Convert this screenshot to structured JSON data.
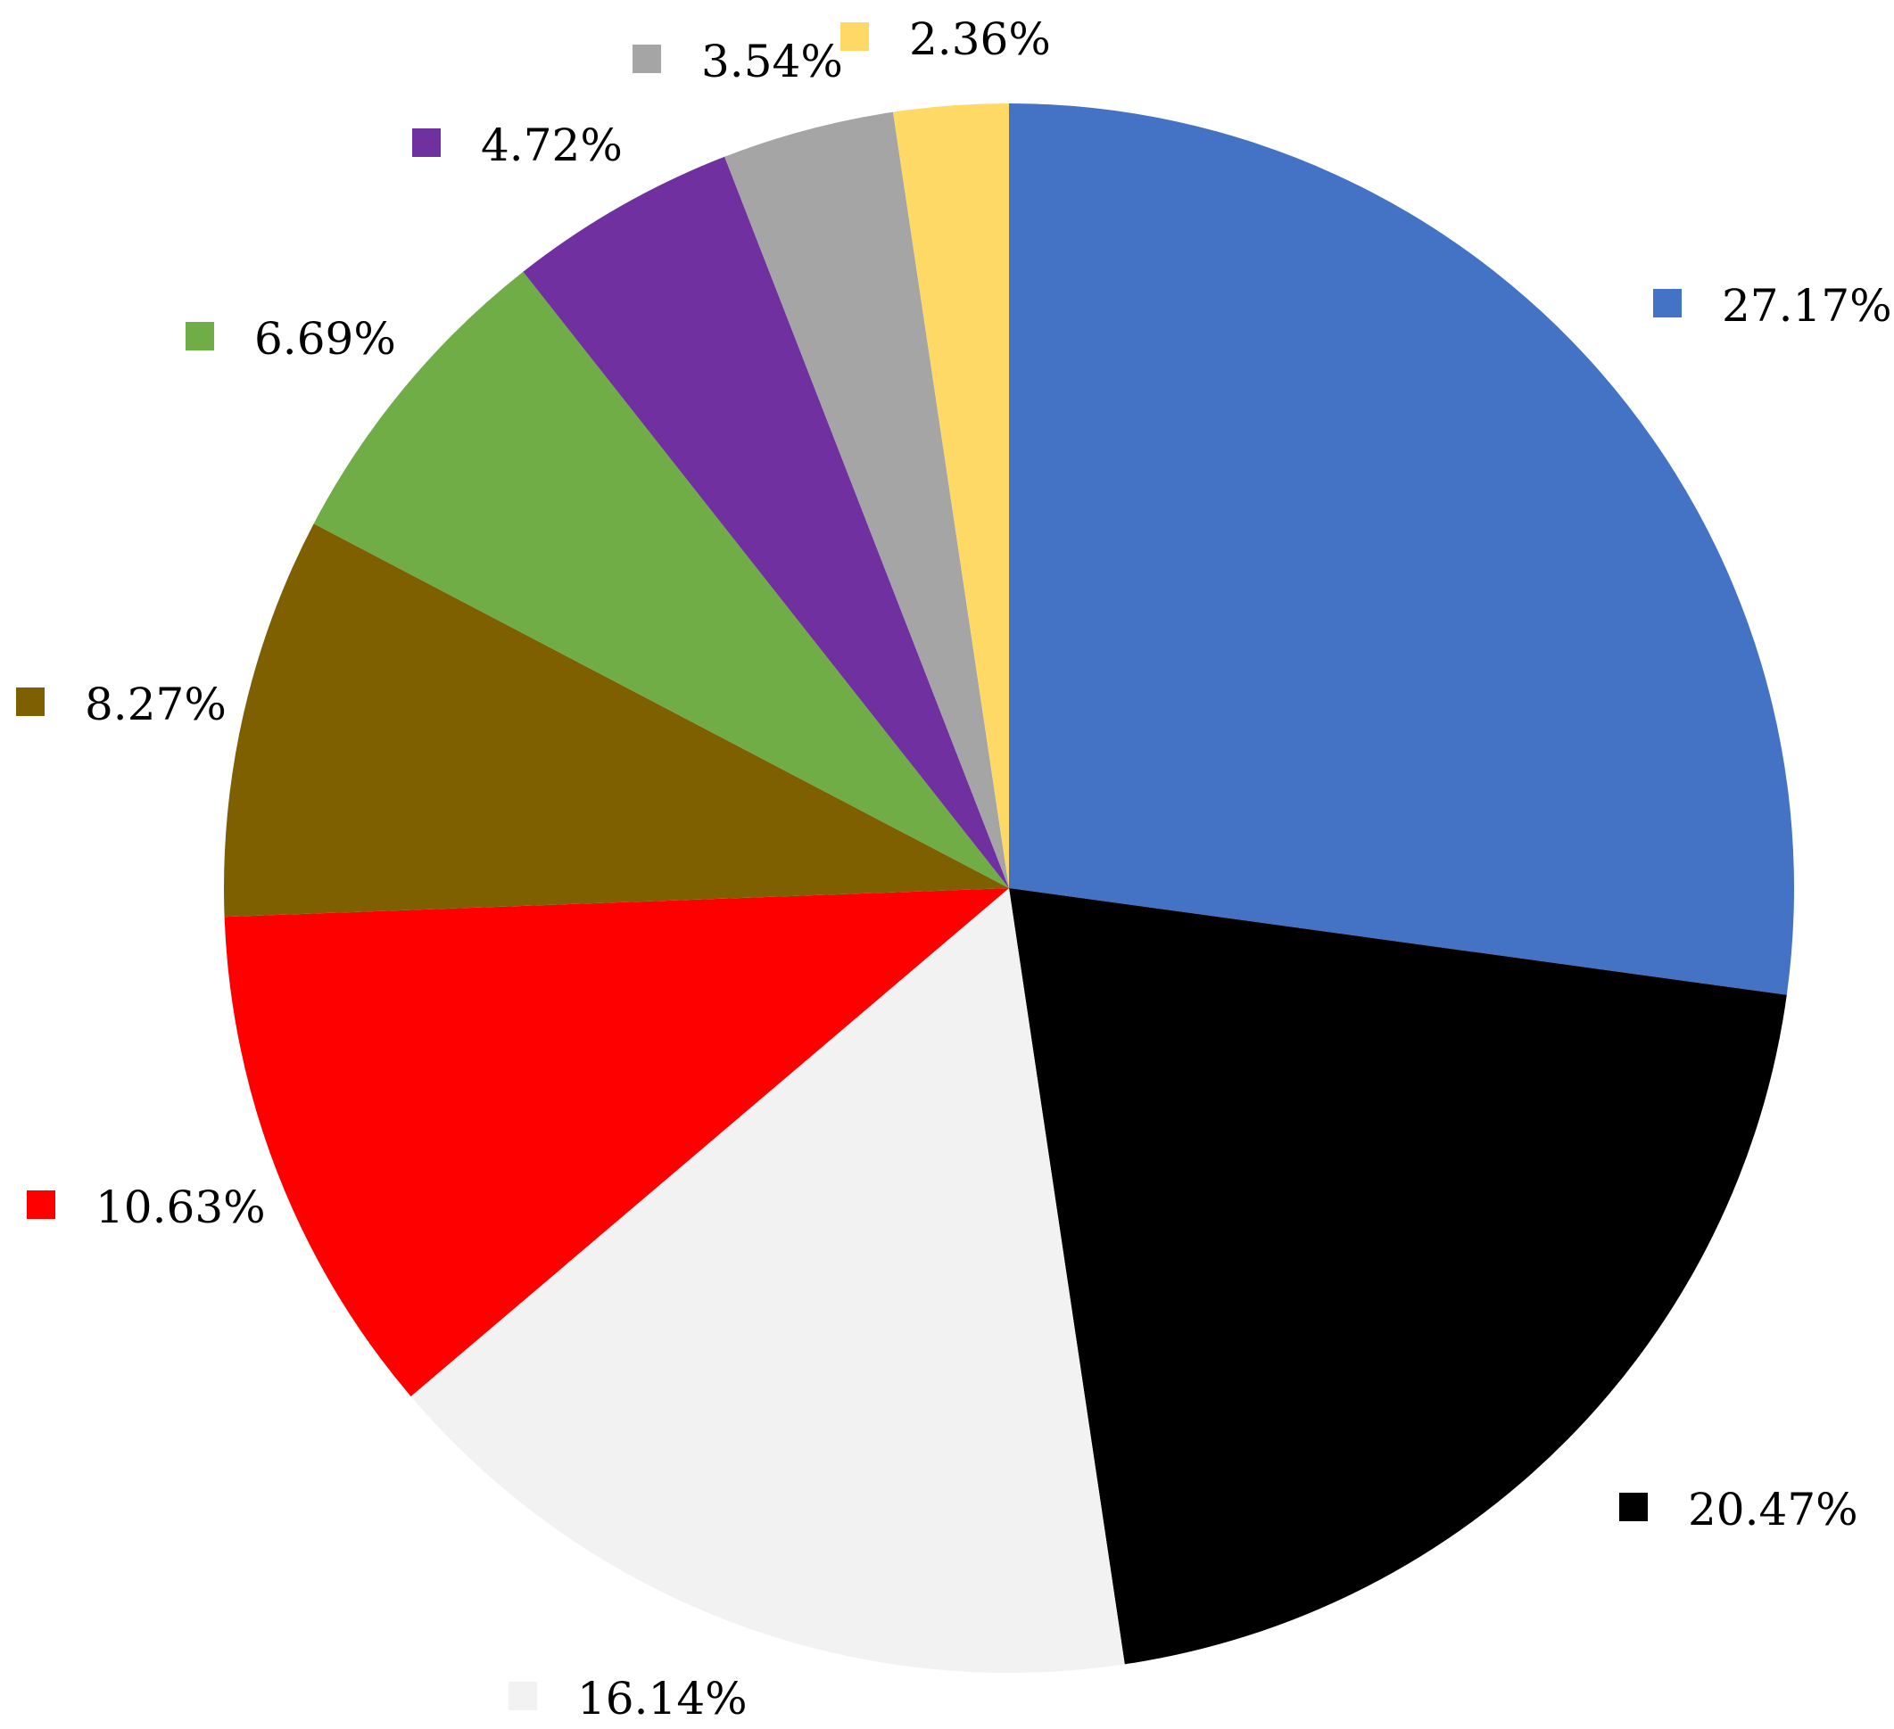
{
  "chart_data": {
    "type": "pie",
    "start_angle_deg": 0,
    "direction": "clockwise",
    "slices": [
      {
        "label": "27.17%",
        "value": 27.17,
        "color": "#4472C4"
      },
      {
        "label": "20.47%",
        "value": 20.47,
        "color": "#000000"
      },
      {
        "label": "16.14%",
        "value": 16.14,
        "color": "#F2F2F2"
      },
      {
        "label": "10.63%",
        "value": 10.63,
        "color": "#FF0000"
      },
      {
        "label": "8.27%",
        "value": 8.27,
        "color": "#7F6000"
      },
      {
        "label": "6.69%",
        "value": 6.69,
        "color": "#70AD47"
      },
      {
        "label": "4.72%",
        "value": 4.72,
        "color": "#7030A0"
      },
      {
        "label": "3.54%",
        "value": 3.54,
        "color": "#A5A5A5"
      },
      {
        "label": "2.36%",
        "value": 2.36,
        "color": "#FFD966"
      }
    ]
  }
}
